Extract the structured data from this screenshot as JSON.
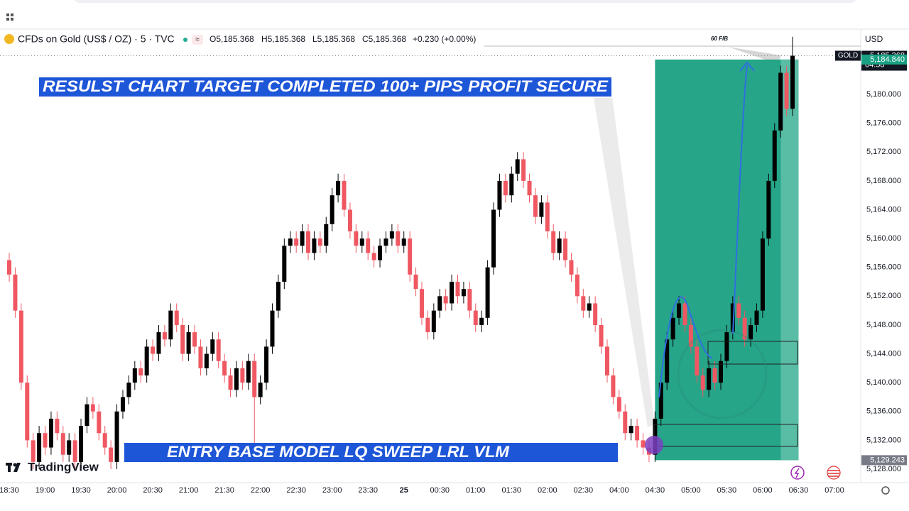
{
  "header": {
    "symbol": "CFDs on Gold (US$ / OZ) · 5 · TVC",
    "quote": [
      "O5,185.368",
      "H5,185.368",
      "L5,185.368",
      "C5,185.368",
      "+0.230 (+0.00%)"
    ],
    "currency": "USD"
  },
  "branding": "TradingView",
  "chart_data": {
    "type": "candlestick",
    "annotations": [
      "RESULST CHART TARGET COMPLETED 100+ PIPS PROFIT SECURE",
      "ENTRY BASE MODEL LQ SWEEP LRL VLM"
    ],
    "fib_label": "60 FIB",
    "symbol_tag": "GOLD",
    "countdown": "04:58",
    "price_labels": [
      {
        "value": 5185.368,
        "label": "5,185.368"
      },
      {
        "value": 5184.84,
        "label": "5,184.840"
      },
      {
        "value": 5129.243,
        "label": "5,129.243"
      }
    ],
    "up_color": "#000000",
    "down_color": "#ef5862",
    "grid": false,
    "ylim": [
      5126.13,
      5188.67
    ],
    "yticks": [
      {
        "value": 5128,
        "label": "5,128.000"
      },
      {
        "value": 5132,
        "label": "5,132.000"
      },
      {
        "value": 5136,
        "label": "5,136.000"
      },
      {
        "value": 5140,
        "label": "5,140.000"
      },
      {
        "value": 5144,
        "label": "5,144.000"
      },
      {
        "value": 5148,
        "label": "5,148.000"
      },
      {
        "value": 5152,
        "label": "5,152.000"
      },
      {
        "value": 5156,
        "label": "5,156.000"
      },
      {
        "value": 5160,
        "label": "5,160.000"
      },
      {
        "value": 5164,
        "label": "5,164.000"
      },
      {
        "value": 5168,
        "label": "5,168.000"
      },
      {
        "value": 5172,
        "label": "5,172.000"
      },
      {
        "value": 5176,
        "label": "5,176.000"
      },
      {
        "value": 5180,
        "label": "5,180.000"
      }
    ],
    "categories": [
      "18:30",
      null,
      null,
      null,
      null,
      null,
      "19:00",
      null,
      null,
      null,
      null,
      null,
      "19:30",
      null,
      null,
      null,
      null,
      null,
      "20:00",
      null,
      null,
      null,
      null,
      null,
      "20:30",
      null,
      null,
      null,
      null,
      null,
      "21:00",
      null,
      null,
      null,
      null,
      null,
      "21:30",
      null,
      null,
      null,
      null,
      null,
      "22:00",
      null,
      null,
      null,
      null,
      null,
      "22:30",
      null,
      null,
      null,
      null,
      null,
      "23:00",
      null,
      null,
      null,
      null,
      null,
      "23:30",
      null,
      null,
      null,
      null,
      null,
      "25",
      null,
      null,
      null,
      null,
      null,
      "00:30",
      null,
      null,
      null,
      null,
      null,
      "01:00",
      null,
      null,
      null,
      null,
      null,
      "01:30",
      null,
      null,
      null,
      null,
      null,
      "02:00",
      null,
      null,
      null,
      null,
      null,
      "02:30",
      null,
      null,
      null,
      null,
      null,
      "04:00",
      null,
      null,
      null,
      null,
      null,
      "04:30",
      null,
      null,
      null,
      null,
      null,
      "05:00",
      null,
      null,
      null,
      null,
      null,
      "05:30",
      null,
      null,
      null,
      null,
      null,
      "06:00",
      null,
      null,
      null,
      null,
      null,
      "06:30",
      null,
      null,
      null,
      null,
      null,
      "07:00"
    ],
    "open": [
      5157,
      5155,
      5150,
      5140,
      5132,
      5129,
      5133,
      5131,
      5135,
      5133,
      5130,
      5132,
      5129,
      5134,
      5137,
      5136,
      5133,
      5131,
      5129,
      5136,
      5138,
      5140,
      5142,
      5141,
      5145,
      5144,
      5147,
      5146,
      5150,
      5148,
      5144,
      5147,
      5145,
      5142,
      5144,
      5146,
      5143,
      5141,
      5139,
      5142,
      5140,
      5143,
      5138,
      5140,
      5145,
      5150,
      5154,
      5159,
      5160,
      5159,
      5161,
      5158,
      5160,
      5159,
      5162,
      5166,
      5168,
      5164,
      5161,
      5159,
      5160,
      5158,
      5157,
      5159,
      5160,
      5161,
      5159,
      5160,
      5155,
      5153,
      5149,
      5147,
      5150,
      5152,
      5151,
      5154,
      5152,
      5153,
      5150,
      5148,
      5149,
      5156,
      5164,
      5168,
      5166,
      5169,
      5171,
      5168,
      5166,
      5163,
      5165,
      5161,
      5158,
      5160,
      5157,
      5155,
      5152,
      5150,
      5151,
      5148,
      5145,
      5141,
      5138,
      5136,
      5133,
      5134,
      5132,
      5131,
      5130,
      5135,
      5140,
      5146,
      5149,
      5151,
      5148,
      5145,
      5141,
      5139,
      5142,
      5140,
      5143,
      5147,
      5151,
      5149,
      5146,
      5148,
      5150,
      5160,
      5168,
      5175,
      5183,
      5178,
      null,
      null,
      null,
      null,
      null,
      null,
      null
    ],
    "high": [
      5158,
      5156,
      5151,
      5141,
      5133,
      5134,
      5134,
      5136,
      5136,
      5134,
      5133,
      5133,
      5135,
      5138,
      5138,
      5137,
      5134,
      5132,
      5137,
      5139,
      5141,
      5143,
      5143,
      5146,
      5146,
      5148,
      5148,
      5151,
      5151,
      5149,
      5148,
      5148,
      5146,
      5145,
      5147,
      5147,
      5144,
      5142,
      5143,
      5143,
      5144,
      5144,
      5141,
      5146,
      5151,
      5155,
      5160,
      5161,
      5161,
      5162,
      5162,
      5161,
      5161,
      5163,
      5167,
      5169,
      5169,
      5165,
      5162,
      5161,
      5161,
      5159,
      5160,
      5161,
      5162,
      5162,
      5161,
      5161,
      5156,
      5154,
      5150,
      5151,
      5153,
      5153,
      5155,
      5155,
      5154,
      5154,
      5151,
      5150,
      5157,
      5165,
      5169,
      5169,
      5170,
      5172,
      5172,
      5169,
      5167,
      5166,
      5166,
      5162,
      5161,
      5161,
      5158,
      5156,
      5153,
      5152,
      5152,
      5149,
      5146,
      5142,
      5139,
      5137,
      5135,
      5135,
      5133,
      5132,
      5136,
      5141,
      5147,
      5150,
      5152,
      5152,
      5149,
      5146,
      5142,
      5143,
      5143,
      5144,
      5148,
      5152,
      5152,
      5150,
      5149,
      5151,
      5161,
      5169,
      5176,
      5184,
      5184,
      5188,
      null,
      null,
      null,
      null,
      null,
      null,
      null
    ],
    "low": [
      5154,
      5149,
      5139,
      5131,
      5128,
      5128,
      5130,
      5130,
      5132,
      5129,
      5129,
      5128,
      5128,
      5133,
      5135,
      5132,
      5130,
      5128,
      5128,
      5135,
      5137,
      5139,
      5140,
      5140,
      5143,
      5143,
      5145,
      5145,
      5147,
      5143,
      5143,
      5144,
      5141,
      5141,
      5143,
      5142,
      5140,
      5138,
      5138,
      5139,
      5139,
      5131,
      5137,
      5139,
      5144,
      5149,
      5153,
      5158,
      5158,
      5158,
      5157,
      5157,
      5158,
      5158,
      5161,
      5165,
      5163,
      5160,
      5158,
      5158,
      5157,
      5156,
      5156,
      5158,
      5159,
      5158,
      5158,
      5154,
      5152,
      5148,
      5146,
      5146,
      5149,
      5150,
      5150,
      5151,
      5151,
      5149,
      5147,
      5147,
      5148,
      5155,
      5163,
      5165,
      5165,
      5168,
      5167,
      5165,
      5162,
      5162,
      5160,
      5157,
      5157,
      5156,
      5154,
      5151,
      5149,
      5149,
      5147,
      5144,
      5140,
      5137,
      5135,
      5132,
      5132,
      5131,
      5130,
      5129,
      5129,
      5134,
      5139,
      5145,
      5148,
      5147,
      5144,
      5140,
      5138,
      5138,
      5139,
      5139,
      5142,
      5146,
      5148,
      5145,
      5145,
      5147,
      5149,
      5159,
      5167,
      5174,
      5177,
      5177,
      null,
      null,
      null,
      null,
      null,
      null,
      null
    ],
    "close": [
      5155,
      5150,
      5140,
      5132,
      5129,
      5133,
      5131,
      5135,
      5133,
      5130,
      5132,
      5129,
      5134,
      5137,
      5136,
      5133,
      5131,
      5129,
      5136,
      5138,
      5140,
      5142,
      5141,
      5145,
      5144,
      5147,
      5146,
      5150,
      5148,
      5144,
      5147,
      5145,
      5142,
      5144,
      5146,
      5143,
      5141,
      5139,
      5142,
      5140,
      5143,
      5138,
      5140,
      5145,
      5150,
      5154,
      5159,
      5160,
      5159,
      5161,
      5158,
      5160,
      5159,
      5162,
      5166,
      5168,
      5164,
      5161,
      5159,
      5160,
      5158,
      5157,
      5159,
      5160,
      5161,
      5159,
      5160,
      5155,
      5153,
      5149,
      5147,
      5150,
      5152,
      5151,
      5154,
      5152,
      5153,
      5150,
      5148,
      5149,
      5156,
      5164,
      5168,
      5166,
      5169,
      5171,
      5168,
      5166,
      5163,
      5165,
      5161,
      5158,
      5160,
      5157,
      5155,
      5152,
      5150,
      5151,
      5148,
      5145,
      5141,
      5138,
      5136,
      5133,
      5134,
      5132,
      5131,
      5130,
      5135,
      5140,
      5146,
      5149,
      5151,
      5148,
      5145,
      5141,
      5139,
      5142,
      5140,
      5143,
      5147,
      5151,
      5149,
      5146,
      5148,
      5150,
      5160,
      5168,
      5175,
      5183,
      5178,
      5185.368,
      null,
      null,
      null,
      null,
      null,
      null,
      null
    ]
  }
}
